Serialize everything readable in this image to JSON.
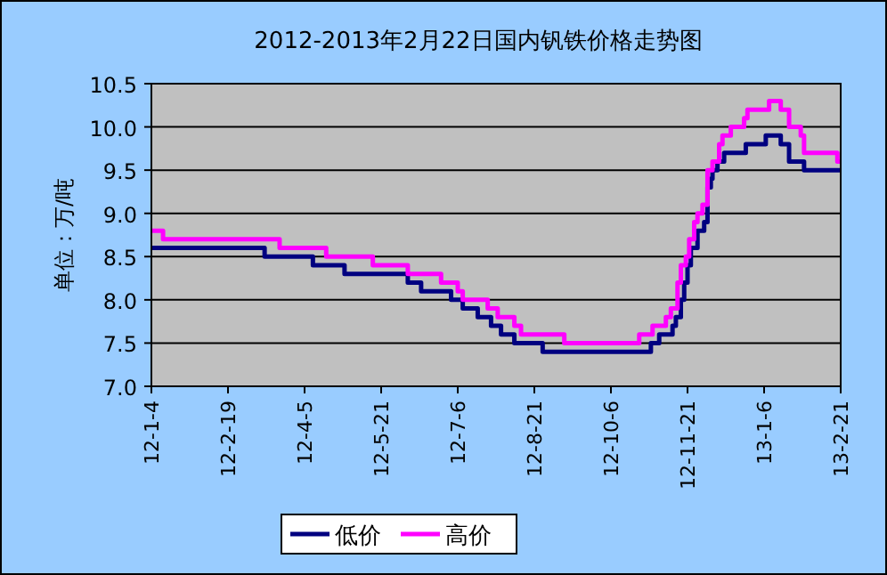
{
  "chart_data": {
    "type": "step",
    "title": "2012-2013年2月22日国内钒铁价格走势图",
    "ylabel": "单位：万/吨",
    "xlim": [
      "2012-01-04",
      "2013-02-21"
    ],
    "xticks": [
      {
        "value": "2012-01-04",
        "label": "12-1-4"
      },
      {
        "value": "2012-02-19",
        "label": "12-2-19"
      },
      {
        "value": "2012-04-05",
        "label": "12-4-5"
      },
      {
        "value": "2012-05-21",
        "label": "12-5-21"
      },
      {
        "value": "2012-07-06",
        "label": "12-7-6"
      },
      {
        "value": "2012-08-21",
        "label": "12-8-21"
      },
      {
        "value": "2012-10-06",
        "label": "12-10-6"
      },
      {
        "value": "2012-11-21",
        "label": "12-11-21"
      },
      {
        "value": "2013-01-06",
        "label": "13-1-6"
      },
      {
        "value": "2013-02-21",
        "label": "13-2-21"
      }
    ],
    "ylim": [
      7.0,
      10.5
    ],
    "yticks": [
      {
        "value": 7.0,
        "label": "7.0"
      },
      {
        "value": 7.5,
        "label": "7.5"
      },
      {
        "value": 8.0,
        "label": "8.0"
      },
      {
        "value": 8.5,
        "label": "8.5"
      },
      {
        "value": 9.0,
        "label": "9.0"
      },
      {
        "value": 9.5,
        "label": "9.5"
      },
      {
        "value": 10.0,
        "label": "10.0"
      },
      {
        "value": 10.5,
        "label": "10.5"
      }
    ],
    "grid": "y",
    "legend": "bottom",
    "series": [
      {
        "name": "低价",
        "color": "#000080",
        "x": [
          "2012-01-04",
          "2012-03-12",
          "2012-04-10",
          "2012-04-29",
          "2012-06-06",
          "2012-06-14",
          "2012-07-02",
          "2012-07-09",
          "2012-07-18",
          "2012-07-26",
          "2012-08-01",
          "2012-08-09",
          "2012-08-26",
          "2012-10-30",
          "2012-11-04",
          "2012-11-12",
          "2012-11-14",
          "2012-11-17",
          "2012-11-19",
          "2012-11-21",
          "2012-11-23",
          "2012-11-27",
          "2012-12-01",
          "2012-12-03",
          "2012-12-05",
          "2012-12-06",
          "2012-12-09",
          "2012-12-13",
          "2012-12-26",
          "2013-01-07",
          "2013-01-16",
          "2013-01-21",
          "2013-01-30",
          "2013-02-21"
        ],
        "values": [
          8.6,
          8.5,
          8.4,
          8.3,
          8.2,
          8.1,
          8.0,
          7.9,
          7.8,
          7.7,
          7.6,
          7.5,
          7.4,
          7.5,
          7.6,
          7.7,
          7.8,
          8.0,
          8.2,
          8.4,
          8.6,
          8.8,
          8.9,
          9.3,
          9.4,
          9.5,
          9.6,
          9.7,
          9.8,
          9.9,
          9.8,
          9.6,
          9.5,
          9.5
        ]
      },
      {
        "name": "高价",
        "color": "#ff00ff",
        "x": [
          "2012-01-04",
          "2012-01-11",
          "2012-03-21",
          "2012-04-18",
          "2012-05-16",
          "2012-06-06",
          "2012-06-26",
          "2012-07-06",
          "2012-07-09",
          "2012-07-24",
          "2012-07-30",
          "2012-08-09",
          "2012-08-13",
          "2012-09-08",
          "2012-10-23",
          "2012-10-31",
          "2012-11-08",
          "2012-11-11",
          "2012-11-15",
          "2012-11-17",
          "2012-11-20",
          "2012-11-22",
          "2012-11-25",
          "2012-11-27",
          "2012-11-30",
          "2012-12-03",
          "2012-12-06",
          "2012-12-10",
          "2012-12-12",
          "2012-12-17",
          "2012-12-25",
          "2012-12-27",
          "2013-01-09",
          "2013-01-16",
          "2013-01-21",
          "2013-01-28",
          "2013-01-30",
          "2013-02-19",
          "2013-02-21"
        ],
        "values": [
          8.8,
          8.7,
          8.6,
          8.5,
          8.4,
          8.3,
          8.2,
          8.1,
          8.0,
          7.9,
          7.8,
          7.7,
          7.6,
          7.5,
          7.6,
          7.7,
          7.8,
          7.9,
          8.2,
          8.4,
          8.5,
          8.7,
          8.9,
          9.0,
          9.1,
          9.5,
          9.6,
          9.8,
          9.9,
          10.0,
          10.1,
          10.2,
          10.3,
          10.2,
          10.0,
          9.9,
          9.7,
          9.6,
          9.6
        ]
      }
    ]
  }
}
